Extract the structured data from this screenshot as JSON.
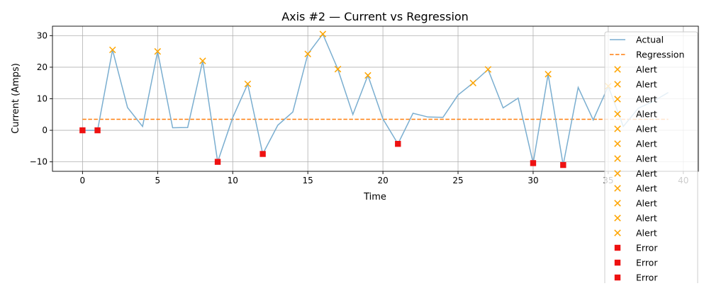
{
  "chart_data": {
    "type": "line",
    "title": "Axis #2 — Current vs Regression",
    "xlabel": "Time",
    "ylabel": "Current (Amps)",
    "xlim": [
      -2,
      41
    ],
    "ylim": [
      -13,
      33
    ],
    "xticks": [
      0,
      5,
      10,
      15,
      20,
      25,
      30,
      35,
      40
    ],
    "yticks": [
      -10,
      0,
      10,
      20,
      30
    ],
    "grid": true,
    "legend_position": "upper-right",
    "series": [
      {
        "name": "Actual",
        "kind": "line",
        "color": "#7aaed0",
        "x": [
          0,
          1,
          2,
          3,
          4,
          5,
          6,
          7,
          8,
          9,
          10,
          11,
          12,
          13,
          14,
          15,
          16,
          17,
          18,
          19,
          20,
          21,
          22,
          23,
          24,
          25,
          26,
          27,
          28,
          29,
          30,
          31,
          32,
          33,
          34,
          35,
          36,
          37,
          38,
          39
        ],
        "y": [
          0,
          0,
          25.5,
          7.2,
          1.2,
          25,
          0.8,
          0.9,
          22,
          -10,
          4,
          14.7,
          -7.5,
          1.6,
          5.8,
          24.2,
          30.5,
          19.4,
          5,
          17.4,
          3.6,
          -4.3,
          5.4,
          4.2,
          4.1,
          11.2,
          15,
          19.3,
          7.1,
          10.2,
          -10.4,
          17.8,
          -11,
          13.6,
          3.3,
          14,
          1.2,
          7,
          9.2,
          12
        ]
      },
      {
        "name": "Regression",
        "kind": "dashed-line",
        "color": "#ff7f0e",
        "x": [
          0,
          39
        ],
        "y": [
          3.5,
          3.5
        ]
      }
    ],
    "alerts": {
      "name": "Alert",
      "color": "#ffa500",
      "marker": "x",
      "points": [
        [
          2,
          25.5
        ],
        [
          5,
          25
        ],
        [
          8,
          22
        ],
        [
          11,
          14.7
        ],
        [
          15,
          24.2
        ],
        [
          16,
          30.5
        ],
        [
          17,
          19.4
        ],
        [
          19,
          17.4
        ],
        [
          26,
          15
        ],
        [
          27,
          19.3
        ],
        [
          31,
          17.8
        ],
        [
          35,
          14
        ]
      ]
    },
    "errors": {
      "name": "Error",
      "color": "#ee1111",
      "marker": "square",
      "points": [
        [
          0,
          0
        ],
        [
          1,
          0
        ],
        [
          9,
          -10
        ],
        [
          12,
          -7.5
        ],
        [
          21,
          -4.3
        ],
        [
          30,
          -10.4
        ],
        [
          32,
          -11
        ]
      ]
    },
    "legend": [
      {
        "label": "Actual",
        "kind": "line",
        "color": "#7aaed0"
      },
      {
        "label": "Regression",
        "kind": "dashed",
        "color": "#ff7f0e"
      },
      {
        "label": "Alert",
        "kind": "x",
        "color": "#ffa500"
      },
      {
        "label": "Alert",
        "kind": "x",
        "color": "#ffa500"
      },
      {
        "label": "Alert",
        "kind": "x",
        "color": "#ffa500"
      },
      {
        "label": "Alert",
        "kind": "x",
        "color": "#ffa500"
      },
      {
        "label": "Alert",
        "kind": "x",
        "color": "#ffa500"
      },
      {
        "label": "Alert",
        "kind": "x",
        "color": "#ffa500"
      },
      {
        "label": "Alert",
        "kind": "x",
        "color": "#ffa500"
      },
      {
        "label": "Alert",
        "kind": "x",
        "color": "#ffa500"
      },
      {
        "label": "Alert",
        "kind": "x",
        "color": "#ffa500"
      },
      {
        "label": "Alert",
        "kind": "x",
        "color": "#ffa500"
      },
      {
        "label": "Alert",
        "kind": "x",
        "color": "#ffa500"
      },
      {
        "label": "Alert",
        "kind": "x",
        "color": "#ffa500"
      },
      {
        "label": "Error",
        "kind": "square",
        "color": "#ee1111"
      },
      {
        "label": "Error",
        "kind": "square",
        "color": "#ee1111"
      },
      {
        "label": "Error",
        "kind": "square",
        "color": "#ee1111"
      }
    ]
  }
}
